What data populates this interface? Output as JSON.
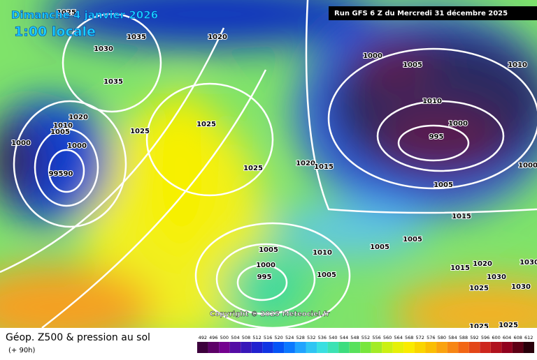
{
  "header": {
    "date": "Dimanche 4 janvier 2026",
    "time": "1:00 locale",
    "run": "Run GFS 6 Z du Mercredi 31 décembre 2025"
  },
  "copyright": "Copyright © 2025 Meteociel.fr",
  "footer": {
    "title": "Géop. Z500 & pression au sol",
    "lead": "(+ 90h)"
  },
  "isobar_labels": [
    1025,
    1035,
    1020,
    1030,
    1000,
    1005,
    1010,
    1035,
    1010,
    1020,
    1010,
    1005,
    1025,
    1025,
    1000,
    1000,
    1000,
    995,
    99590,
    1025,
    1020,
    1015,
    1000,
    1005,
    1015,
    1005,
    1005,
    1005,
    1010,
    1015,
    1020,
    1030,
    1000,
    995,
    1005,
    1030,
    1025,
    1030,
    1025,
    1025
  ],
  "legend_ticks": [
    492,
    496,
    500,
    504,
    508,
    512,
    516,
    520,
    524,
    528,
    532,
    536,
    540,
    544,
    548,
    552,
    556,
    560,
    564,
    568,
    572,
    576,
    580,
    584,
    588,
    592,
    596,
    600,
    604,
    608,
    612
  ]
}
